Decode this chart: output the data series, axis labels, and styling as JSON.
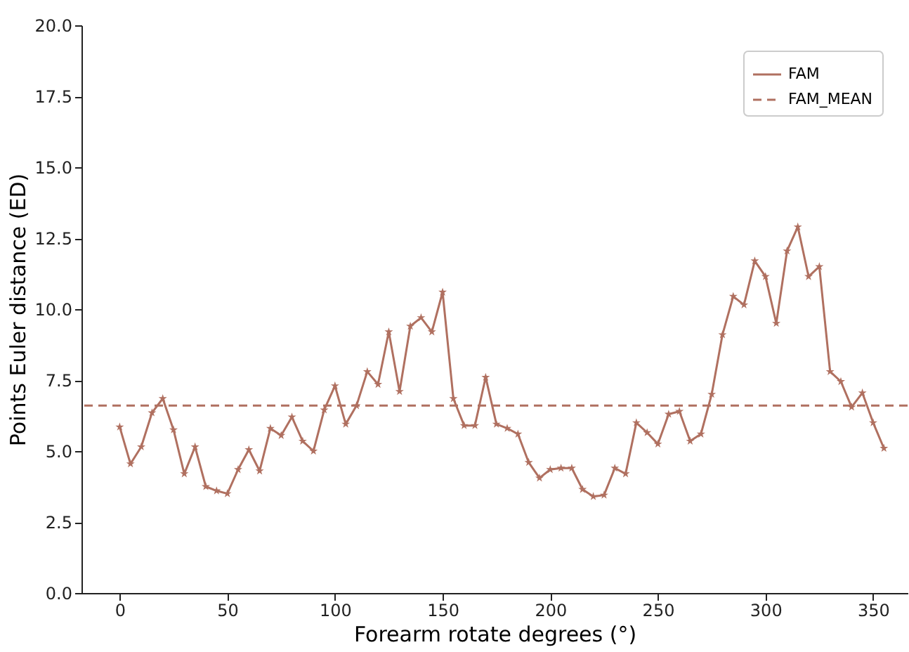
{
  "chart_data": {
    "type": "line",
    "xlabel": "Forearm rotate degrees (°)",
    "ylabel": "Points Euler distance (ED)",
    "x": [
      0,
      5,
      10,
      15,
      20,
      25,
      30,
      35,
      40,
      45,
      50,
      55,
      60,
      65,
      70,
      75,
      80,
      85,
      90,
      95,
      100,
      105,
      110,
      115,
      120,
      125,
      130,
      135,
      140,
      145,
      150,
      155,
      160,
      165,
      170,
      175,
      180,
      185,
      190,
      195,
      200,
      205,
      210,
      215,
      220,
      225,
      230,
      235,
      240,
      245,
      250,
      255,
      260,
      265,
      270,
      275,
      280,
      285,
      290,
      295,
      300,
      305,
      310,
      315,
      320,
      325,
      330,
      335,
      340,
      345,
      350,
      355
    ],
    "series": [
      {
        "name": "FAM",
        "color": "#b07060",
        "values": [
          5.85,
          4.55,
          5.15,
          6.35,
          6.85,
          5.75,
          4.2,
          5.15,
          3.75,
          3.6,
          3.5,
          4.35,
          5.05,
          4.3,
          5.8,
          5.55,
          6.2,
          5.35,
          5.0,
          6.45,
          7.3,
          5.95,
          6.6,
          7.8,
          7.35,
          9.2,
          7.1,
          9.4,
          9.7,
          9.2,
          10.6,
          6.85,
          5.9,
          5.9,
          7.6,
          5.95,
          5.8,
          5.6,
          4.6,
          4.05,
          4.35,
          4.4,
          4.4,
          3.65,
          3.4,
          3.45,
          4.4,
          4.2,
          6.0,
          5.65,
          5.25,
          6.3,
          6.4,
          5.35,
          5.6,
          7.0,
          9.1,
          10.45,
          10.15,
          11.7,
          11.15,
          9.5,
          12.05,
          12.9,
          11.15,
          11.5,
          7.8,
          7.45,
          6.55,
          7.05,
          6.0,
          5.1
        ]
      }
    ],
    "ref_lines": [
      {
        "axis": "y",
        "value": 6.6,
        "label": "FAM_MEAN",
        "color": "#b07060",
        "line_style": "dashed"
      }
    ],
    "xlim": [
      -17.75,
      366
    ],
    "xticks": [
      0,
      50,
      100,
      150,
      200,
      250,
      300,
      350
    ],
    "ylim": [
      0,
      20
    ],
    "yticks": [
      {
        "value": 0,
        "label": "0.0"
      },
      2.5,
      {
        "value": 5,
        "label": "5.0"
      },
      7.5,
      {
        "value": 10,
        "label": "10.0"
      },
      12.5,
      {
        "value": 15,
        "label": "15.0"
      },
      17.5,
      {
        "value": 20,
        "label": "20.0"
      }
    ],
    "grid": false,
    "legend": "top right",
    "marker": "star",
    "line_style": "solid"
  }
}
